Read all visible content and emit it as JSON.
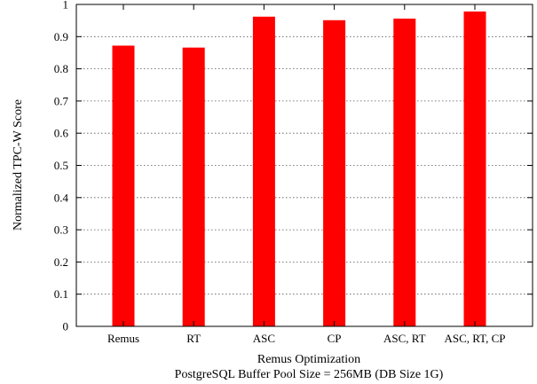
{
  "chart_data": {
    "type": "bar",
    "categories": [
      "Remus",
      "RT",
      "ASC",
      "CP",
      "ASC, RT",
      "ASC, RT, CP"
    ],
    "values": [
      0.872,
      0.866,
      0.962,
      0.951,
      0.956,
      0.978
    ],
    "xlabel": "Remus Optimization",
    "subtitle": "PostgreSQL Buffer Pool Size = 256MB (DB Size 1G)",
    "ylabel": "Normalized TPC-W Score",
    "ylim": [
      0,
      1.0
    ],
    "yticks": [
      "0",
      "0.1",
      "0.2",
      "0.3",
      "0.4",
      "0.5",
      "0.6",
      "0.7",
      "0.8",
      "0.9",
      "1"
    ],
    "grid": true,
    "bar_color": "#ff0000"
  }
}
